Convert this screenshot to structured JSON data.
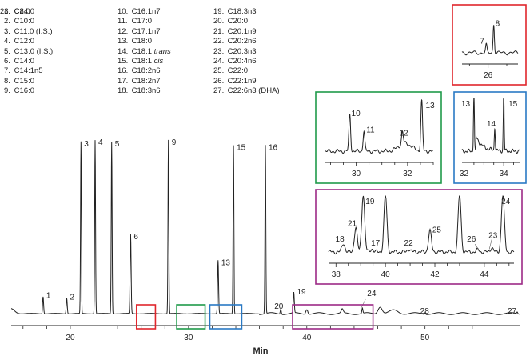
{
  "legend": [
    {
      "num": "1.",
      "name": "C8:0"
    },
    {
      "num": "2.",
      "name": "C10:0"
    },
    {
      "num": "3.",
      "name": "C11:0 (I.S.)"
    },
    {
      "num": "4.",
      "name": "C12:0"
    },
    {
      "num": "5.",
      "name": "C13:0 (I.S.)"
    },
    {
      "num": "6.",
      "name": "C14:0"
    },
    {
      "num": "7.",
      "name": "C14:1n5"
    },
    {
      "num": "8.",
      "name": "C15:0"
    },
    {
      "num": "9.",
      "name": "C16:0"
    },
    {
      "num": "10.",
      "name": "C16:1n7"
    },
    {
      "num": "11.",
      "name": "C17:0"
    },
    {
      "num": "12.",
      "name": "C17:1n7"
    },
    {
      "num": "13.",
      "name": "C18:0"
    },
    {
      "num": "14.",
      "name": "C18:1 ",
      "em": "trans"
    },
    {
      "num": "15.",
      "name": "C18:1 ",
      "em": "cis"
    },
    {
      "num": "16.",
      "name": "C18:2n6"
    },
    {
      "num": "17.",
      "name": "C18:2n7"
    },
    {
      "num": "18.",
      "name": "C18:3n6"
    },
    {
      "num": "19.",
      "name": "C18:3n3"
    },
    {
      "num": "20.",
      "name": "C20:0"
    },
    {
      "num": "21.",
      "name": "C20:1n9"
    },
    {
      "num": "22.",
      "name": "C20:2n6"
    },
    {
      "num": "23.",
      "name": "C20:3n3"
    },
    {
      "num": "24.",
      "name": "C20:4n6"
    },
    {
      "num": "25.",
      "name": "C22:0"
    },
    {
      "num": "26.",
      "name": "C22:1n9"
    },
    {
      "num": "27.",
      "name": "C22:6n3 (DHA)"
    },
    {
      "num": "28.",
      "name": "C24:0"
    }
  ],
  "chart_data": {
    "type": "line",
    "xlabel": "Min",
    "xlim": [
      15,
      58
    ],
    "xticks": [
      20,
      30,
      40,
      50
    ],
    "peaks": [
      {
        "label": "1",
        "t": 17.7,
        "h": 0.1
      },
      {
        "label": "2",
        "t": 19.7,
        "h": 0.09
      },
      {
        "label": "3",
        "t": 20.9,
        "h": 1.0
      },
      {
        "label": "4",
        "t": 22.1,
        "h": 1.01
      },
      {
        "label": "5",
        "t": 23.5,
        "h": 1.0
      },
      {
        "label": "6",
        "t": 25.1,
        "h": 0.46
      },
      {
        "label": "9",
        "t": 28.3,
        "h": 1.01
      },
      {
        "label": "13",
        "t": 32.5,
        "h": 0.31
      },
      {
        "label": "15",
        "t": 33.8,
        "h": 0.98
      },
      {
        "label": "16",
        "t": 36.5,
        "h": 0.98
      },
      {
        "label": "20",
        "t": 37.8,
        "h": 0.03
      },
      {
        "label": "19",
        "t": 38.9,
        "h": 0.12
      },
      {
        "label": "24",
        "t": 44.7,
        "h": 0.03
      },
      {
        "label": "28",
        "t": 50.0,
        "h": 0.01
      },
      {
        "label": "27",
        "t": 57.8,
        "h": 0.01
      }
    ],
    "highlight_boxes": [
      {
        "color": "#e0262c",
        "t0": 25.6,
        "t1": 27.2
      },
      {
        "color": "#1f9a4a",
        "t0": 29.0,
        "t1": 31.4
      },
      {
        "color": "#2a79c4",
        "t0": 31.8,
        "t1": 34.5
      },
      {
        "color": "#9c2a86",
        "t0": 38.8,
        "t1": 45.6
      }
    ],
    "insets": [
      {
        "id": "inset-red",
        "color": "#e0262c",
        "xlim": [
          25.3,
          26.8
        ],
        "xticks": [
          26
        ],
        "peaks": [
          {
            "label": "7",
            "t": 25.95,
            "h": 0.25
          },
          {
            "label": "8",
            "t": 26.15,
            "h": 0.95
          }
        ]
      },
      {
        "id": "inset-green",
        "color": "#1f9a4a",
        "xlim": [
          28.8,
          33.0
        ],
        "xticks": [
          30,
          32
        ],
        "peaks": [
          {
            "label": "10",
            "t": 29.75,
            "h": 0.9
          },
          {
            "label": "11",
            "t": 30.3,
            "h": 0.5
          },
          {
            "label": "12",
            "t": 31.8,
            "h": 0.3
          },
          {
            "label": "13",
            "t": 32.55,
            "h": 1.25
          }
        ]
      },
      {
        "id": "inset-blue",
        "color": "#2a79c4",
        "xlim": [
          31.9,
          34.8
        ],
        "xticks": [
          32,
          34
        ],
        "peaks": [
          {
            "label": "13",
            "t": 32.5,
            "h": 1.4
          },
          {
            "label": "14",
            "t": 33.55,
            "h": 0.55
          },
          {
            "label": "15",
            "t": 34.0,
            "h": 1.4
          }
        ]
      },
      {
        "id": "inset-purple",
        "color": "#9c2a86",
        "xlim": [
          37.7,
          45.2
        ],
        "xticks": [
          38,
          40,
          42,
          44
        ],
        "peaks": [
          {
            "label": "18",
            "t": 38.3,
            "h": 0.2
          },
          {
            "label": "21",
            "t": 38.8,
            "h": 0.55
          },
          {
            "label": "19",
            "t": 39.1,
            "h": 1.3
          },
          {
            "label": "17",
            "t": 39.45,
            "h": 0.07
          },
          {
            "label": "",
            "t": 40.0,
            "h": 1.3
          },
          {
            "label": "22",
            "t": 40.95,
            "h": 0.07
          },
          {
            "label": "25",
            "t": 41.8,
            "h": 0.48
          },
          {
            "label": "",
            "t": 43.0,
            "h": 1.3
          },
          {
            "label": "26",
            "t": 43.75,
            "h": 0.05
          },
          {
            "label": "23",
            "t": 44.3,
            "h": 0.1
          },
          {
            "label": "24",
            "t": 44.75,
            "h": 1.3
          }
        ]
      }
    ]
  }
}
